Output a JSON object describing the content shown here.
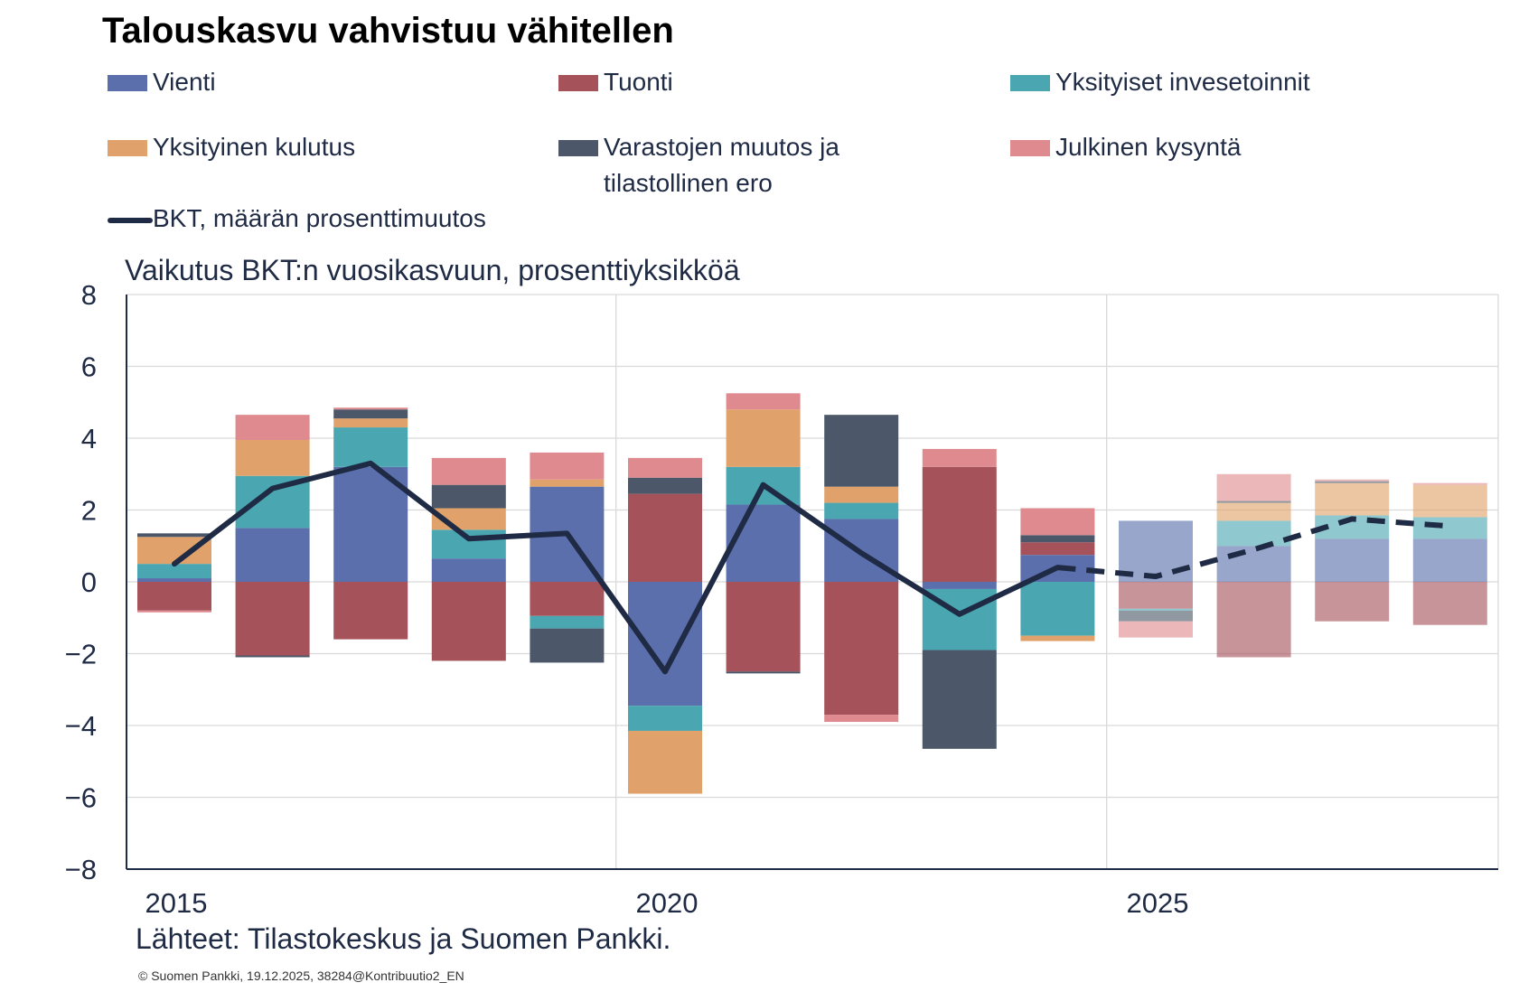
{
  "title": "Talouskasvu vahvistuu vähitellen",
  "subtitle": "Vaikutus BKT:n vuosikasvuun, prosenttiyksikköä",
  "source": "Lähteet: Tilastokeskus ja Suomen Pankki.",
  "copyright": "© Suomen  Pankki, 19.12.2025, 38284@Kontribuutio2_EN",
  "legend": {
    "vienti": "Vienti",
    "tuonti": "Tuonti",
    "yks_inv": "Yksityiset invesetoinnit",
    "yks_kul": "Yksityinen kulutus",
    "varasto_line1": "Varastojen muutos ja",
    "varasto_line2": "tilastollinen ero",
    "julkinen": "Julkinen kysyntä",
    "bkt": "BKT, määrän prosenttimuutos"
  },
  "colors": {
    "vienti": "#5b6fad",
    "tuonti": "#a5525a",
    "yks_inv": "#4aa6b0",
    "yks_kul": "#e0a26a",
    "varasto": "#4c5869",
    "julkinen": "#df8a8e",
    "bkt": "#1f2a44",
    "grid": "#d9d9d9",
    "axis": "#1f2a44"
  },
  "chart_data": {
    "type": "bar",
    "stacked": true,
    "title": "Talouskasvu vahvistuu vähitellen",
    "ylabel": "Vaikutus BKT:n vuosikasvuun, prosenttiyksikköä",
    "ylim": [
      -8,
      8
    ],
    "yticks": [
      8,
      6,
      4,
      2,
      0,
      -2,
      -4,
      -6,
      -8
    ],
    "ytick_labels": [
      "8",
      "6",
      "4",
      "2",
      "0",
      "−2",
      "−4",
      "−6",
      "−8"
    ],
    "categories": [
      2015,
      2016,
      2017,
      2018,
      2019,
      2020,
      2021,
      2022,
      2023,
      2024,
      2025,
      2026,
      2027,
      2028
    ],
    "xtick_labels": [
      {
        "year": 2015,
        "label": "2015"
      },
      {
        "year": 2020,
        "label": "2020"
      },
      {
        "year": 2025,
        "label": "2025"
      }
    ],
    "forecast_from": 2025,
    "series": [
      {
        "key": "vienti",
        "name": "Vienti",
        "values": [
          0.1,
          1.5,
          3.2,
          0.65,
          2.65,
          -3.45,
          2.15,
          1.75,
          -0.2,
          0.75,
          1.7,
          1.0,
          1.2,
          1.2
        ]
      },
      {
        "key": "tuonti",
        "name": "Tuonti",
        "values": [
          -0.8,
          -2.05,
          -1.6,
          -2.2,
          -0.95,
          2.45,
          -2.5,
          -3.7,
          3.2,
          0.35,
          -0.75,
          -2.1,
          -1.1,
          -1.2
        ]
      },
      {
        "key": "yks_inv",
        "name": "Yksityiset invesetoinnit",
        "values": [
          0.4,
          1.45,
          1.1,
          0.8,
          -0.35,
          -0.7,
          1.05,
          0.45,
          -1.7,
          -1.5,
          -0.05,
          0.7,
          0.65,
          0.6
        ]
      },
      {
        "key": "yks_kul",
        "name": "Yksityinen kulutus",
        "values": [
          0.75,
          1.0,
          0.25,
          0.6,
          0.2,
          -1.75,
          1.6,
          0.45,
          0.0,
          -0.15,
          0.0,
          0.5,
          0.9,
          0.9
        ]
      },
      {
        "key": "varasto",
        "name": "Varastojen muutos ja tilastollinen ero",
        "values": [
          0.1,
          -0.05,
          0.25,
          0.65,
          -0.95,
          0.45,
          -0.05,
          2.0,
          -2.75,
          0.2,
          -0.3,
          0.05,
          0.05,
          0.0
        ]
      },
      {
        "key": "julkinen",
        "name": "Julkinen kysyntä",
        "values": [
          -0.05,
          0.7,
          0.05,
          0.75,
          0.75,
          0.55,
          0.45,
          -0.2,
          0.5,
          0.75,
          -0.45,
          0.75,
          0.05,
          0.05
        ]
      }
    ],
    "line": {
      "key": "bkt",
      "name": "BKT, määrän prosenttimuutos",
      "x": [
        2015,
        2016,
        2017,
        2018,
        2019,
        2020,
        2021,
        2022,
        2023,
        2024,
        2025,
        2026,
        2027,
        2028
      ],
      "values": [
        0.5,
        2.6,
        3.3,
        1.2,
        1.35,
        -2.5,
        2.7,
        0.8,
        -0.9,
        0.4,
        0.15,
        0.9,
        1.75,
        1.55
      ],
      "solid_until": 2024,
      "dashed_from": 2024
    }
  }
}
